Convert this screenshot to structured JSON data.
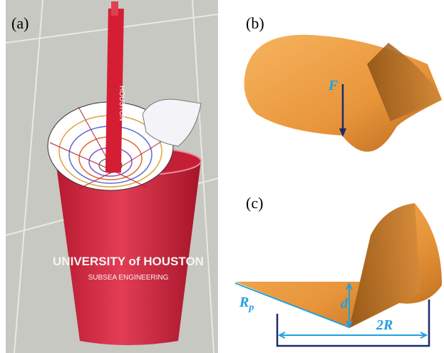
{
  "panels": {
    "a": {
      "label": "(a)",
      "cup_title": "UNIVERSITY of HOUSTON",
      "cup_subtitle": "SUBSEA ENGINEERING",
      "pen_text": "HOUSTON"
    },
    "b": {
      "label": "(b)",
      "force": "F"
    },
    "c": {
      "label": "(c)",
      "depth": "d",
      "radius": {
        "base": "R",
        "subscript": "p"
      },
      "width": "2R"
    }
  }
}
